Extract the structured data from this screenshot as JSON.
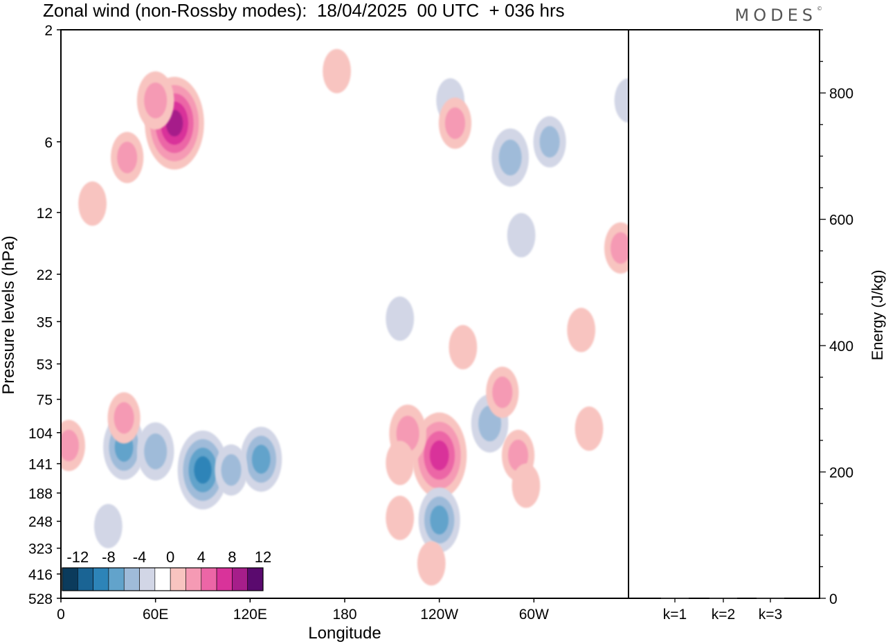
{
  "chart_data": [
    {
      "type": "heatmap",
      "title": "Zonal wind (non-Rossby modes):  18/04/2025  00 UTC  + 036 hrs",
      "xlabel": "Longitude",
      "ylabel": "Pressure levels (hPa)",
      "x_ticks": [
        "0",
        "60E",
        "120E",
        "180",
        "120W",
        "60W"
      ],
      "y_ticks": [
        "2",
        "6",
        "12",
        "22",
        "35",
        "53",
        "75",
        "104",
        "141",
        "188",
        "248",
        "323",
        "416",
        "528"
      ],
      "colorbar_labels": [
        "-12",
        "-8",
        "-4",
        "0",
        "4",
        "8",
        "12"
      ],
      "colorbar_colors": [
        "#0b3b5c",
        "#1a6494",
        "#2d84b8",
        "#62a3cb",
        "#9fbbd9",
        "#d2d6e6",
        "#ffffff",
        "#f8c4c0",
        "#f59ab4",
        "#ec66a6",
        "#d9339a",
        "#a61e8a",
        "#5a0a6e"
      ],
      "features": [
        {
          "lon": 72,
          "lev": 5,
          "value": 9
        },
        {
          "lon": 60,
          "lev": 4,
          "value": 4
        },
        {
          "lon": 42,
          "lev": 7,
          "value": 3
        },
        {
          "lon": 20,
          "lev": 11,
          "value": 2
        },
        {
          "lon": 90,
          "lev": 150,
          "value": -7
        },
        {
          "lon": 40,
          "lev": 120,
          "value": -5
        },
        {
          "lon": 60,
          "lev": 125,
          "value": -4
        },
        {
          "lon": 127,
          "lev": 135,
          "value": -5
        },
        {
          "lon": 108,
          "lev": 150,
          "value": -3
        },
        {
          "lon": 240,
          "lev": 130,
          "value": 8
        },
        {
          "lon": 220,
          "lev": 105,
          "value": 4
        },
        {
          "lon": 215,
          "lev": 140,
          "value": 2
        },
        {
          "lon": 215,
          "lev": 240,
          "value": 2
        },
        {
          "lon": 240,
          "lev": 245,
          "value": -5
        },
        {
          "lon": 235,
          "lev": 375,
          "value": 2
        },
        {
          "lon": 272,
          "lev": 95,
          "value": -4
        },
        {
          "lon": 290,
          "lev": 130,
          "value": 3
        },
        {
          "lon": 295,
          "lev": 175,
          "value": 2
        },
        {
          "lon": 335,
          "lev": 100,
          "value": 2
        },
        {
          "lon": 280,
          "lev": 70,
          "value": 3
        },
        {
          "lon": 285,
          "lev": 7,
          "value": -4
        },
        {
          "lon": 247,
          "lev": 4,
          "value": -2
        },
        {
          "lon": 250,
          "lev": 5,
          "value": 3
        },
        {
          "lon": 310,
          "lev": 6,
          "value": -3
        },
        {
          "lon": 292,
          "lev": 15,
          "value": -2
        },
        {
          "lon": 40,
          "lev": 90,
          "value": 3
        },
        {
          "lon": 30,
          "lev": 260,
          "value": -2
        },
        {
          "lon": 360,
          "lev": 4,
          "value": -2
        },
        {
          "lon": 355,
          "lev": 17,
          "value": 3
        },
        {
          "lon": 5,
          "lev": 118,
          "value": 3
        },
        {
          "lon": 175,
          "lev": 3,
          "value": 2
        },
        {
          "lon": 215,
          "lev": 34,
          "value": -2
        },
        {
          "lon": 330,
          "lev": 38,
          "value": 2
        },
        {
          "lon": 255,
          "lev": 45,
          "value": 2
        }
      ]
    },
    {
      "type": "bar",
      "ylabel": "Energy (J/kg)",
      "categories": [
        "k=1",
        "k=2",
        "k=3"
      ],
      "values": [
        1,
        1,
        1
      ],
      "ylim": [
        0,
        900
      ],
      "y_ticks": [
        0,
        200,
        400,
        600,
        800
      ]
    }
  ],
  "brand": "MODES"
}
